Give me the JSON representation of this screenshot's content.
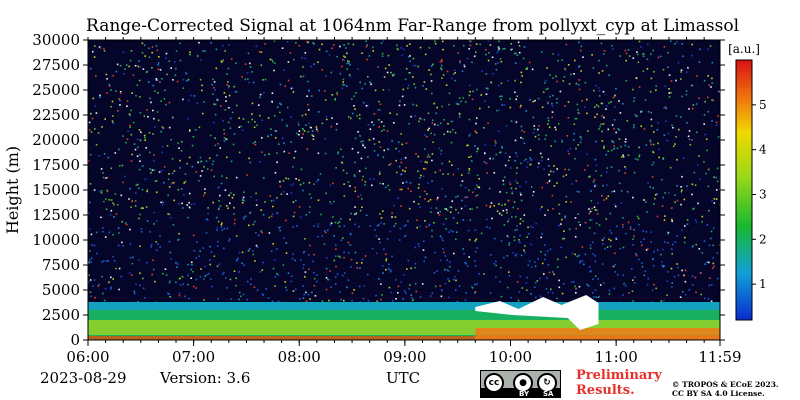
{
  "chart_data": {
    "type": "heatmap",
    "title": "Range-Corrected Signal at 1064nm Far-Range from pollyxt_cyp at Limassol",
    "xlabel": "UTC",
    "ylabel": "Height (m)",
    "x_ticks": [
      "06:00",
      "07:00",
      "08:00",
      "09:00",
      "10:00",
      "11:00",
      "11:59"
    ],
    "x_range": [
      "06:00",
      "11:59"
    ],
    "y_ticks": [
      0,
      2500,
      5000,
      7500,
      10000,
      12500,
      15000,
      17500,
      20000,
      22500,
      25000,
      27500,
      30000
    ],
    "y_range": [
      0,
      30000
    ],
    "colorbar": {
      "unit": "[a.u.]",
      "ticks": [
        1,
        2,
        3,
        4,
        5
      ],
      "range": [
        0.2,
        6
      ]
    },
    "features": [
      {
        "kind": "boundary-layer",
        "time_range": [
          "06:00",
          "11:59"
        ],
        "top_height_m": 3800,
        "value_estimate": 3
      },
      {
        "kind": "low-level-enhancement",
        "time_range": [
          "09:40",
          "11:59"
        ],
        "top_height_m": 1200,
        "value_estimate": 5
      },
      {
        "kind": "masked-cloud",
        "time_range": [
          "09:40",
          "10:50"
        ],
        "height_range_m": [
          1000,
          4500
        ]
      },
      {
        "kind": "noise-aloft",
        "height_range_m": [
          4500,
          30000
        ],
        "value_estimate": 1
      }
    ]
  },
  "footer": {
    "date": "2023-08-29",
    "version": "Version: 3.6",
    "utc_label": "UTC"
  },
  "license": {
    "cc_text": "cc",
    "by_label": "BY",
    "sa_label": "SA",
    "preliminary_line1": "Preliminary",
    "preliminary_line2": "Results.",
    "copyright_line1": "© TROPOS & ECoE 2023.",
    "copyright_line2": "CC BY SA 4.0 License."
  },
  "colors": {
    "low": "#1032d8",
    "mid": "#18b030",
    "high": "#f0e000",
    "top": "#e02818"
  }
}
